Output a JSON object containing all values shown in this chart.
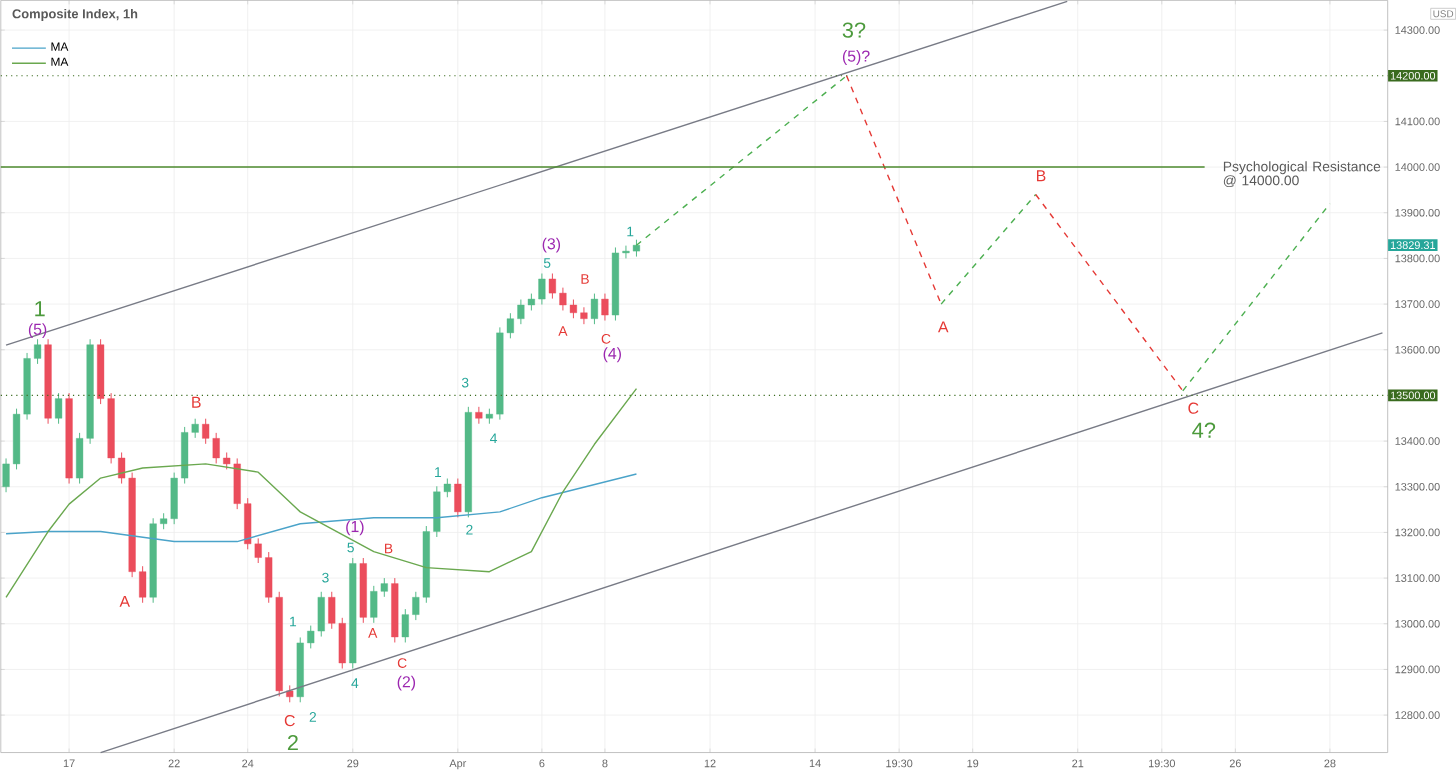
{
  "chart_data": {
    "type": "candlestick",
    "title": "Composite Index, 1h",
    "categories": [
      null,
      null,
      null,
      null,
      null,
      null,
      "17",
      null,
      null,
      null,
      null,
      null,
      null,
      null,
      null,
      null,
      "22",
      null,
      null,
      null,
      null,
      null,
      null,
      "24",
      null,
      null,
      null,
      null,
      null,
      null,
      null,
      null,
      null,
      "29",
      null,
      null,
      null,
      null,
      null,
      null,
      null,
      null,
      null,
      "Apr",
      null,
      null,
      null,
      null,
      null,
      null,
      null,
      "6",
      null,
      null,
      null,
      null,
      null,
      "8",
      null,
      null,
      null,
      null,
      null,
      null,
      null,
      null,
      null,
      "12",
      null,
      null,
      null,
      null,
      null,
      null,
      null,
      null,
      null,
      "14",
      null,
      null,
      null,
      null,
      null,
      null,
      null,
      "19:30",
      null,
      null,
      null,
      null,
      null,
      null,
      "19",
      null,
      null,
      null,
      null,
      null,
      null,
      null,
      null,
      null,
      "21",
      null,
      null,
      null,
      null,
      null,
      null,
      null,
      "19:30",
      null,
      null,
      null,
      null,
      null,
      null,
      "26",
      null,
      null,
      null,
      null,
      null,
      null,
      null,
      null,
      "28",
      null,
      null,
      null,
      null,
      null
    ],
    "ohlc": [
      [
        13300,
        13362,
        13288,
        13350
      ],
      [
        13350,
        13471,
        13338,
        13459
      ],
      [
        13459,
        13593,
        13447,
        13581
      ],
      [
        13581,
        13623,
        13569,
        13611
      ],
      [
        13611,
        13623,
        13438,
        13450
      ],
      [
        13450,
        13505,
        13438,
        13493
      ],
      [
        13493,
        13505,
        13307,
        13319
      ],
      [
        13319,
        13418,
        13307,
        13406
      ],
      [
        13406,
        13623,
        13394,
        13611
      ],
      [
        13611,
        13623,
        13481,
        13493
      ],
      [
        13493,
        13505,
        13351,
        13363
      ],
      [
        13363,
        13375,
        13307,
        13319
      ],
      [
        13319,
        13331,
        13102,
        13114
      ],
      [
        13114,
        13126,
        13046,
        13058
      ],
      [
        13058,
        13231,
        13046,
        13219
      ],
      [
        13219,
        13242,
        13207,
        13230
      ],
      [
        13230,
        13331,
        13218,
        13319
      ],
      [
        13319,
        13431,
        13307,
        13419
      ],
      [
        13419,
        13449,
        13407,
        13437
      ],
      [
        13437,
        13449,
        13394,
        13406
      ],
      [
        13406,
        13418,
        13351,
        13363
      ],
      [
        13363,
        13375,
        13338,
        13350
      ],
      [
        13350,
        13362,
        13251,
        13263
      ],
      [
        13263,
        13275,
        13163,
        13175
      ],
      [
        13175,
        13187,
        13133,
        13145
      ],
      [
        13145,
        13157,
        13046,
        13058
      ],
      [
        13058,
        13070,
        12841,
        12853
      ],
      [
        12853,
        12865,
        12828,
        12840
      ],
      [
        12840,
        12970,
        12828,
        12958
      ],
      [
        12958,
        12996,
        12946,
        12984
      ],
      [
        12984,
        13070,
        12972,
        13058
      ],
      [
        13058,
        13070,
        12989,
        13001
      ],
      [
        13001,
        13013,
        12902,
        12914
      ],
      [
        12914,
        13144,
        12902,
        13132
      ],
      [
        13132,
        13144,
        13002,
        13014
      ],
      [
        13014,
        13083,
        13002,
        13071
      ],
      [
        13071,
        13100,
        13059,
        13088
      ],
      [
        13088,
        13100,
        12959,
        12971
      ],
      [
        12971,
        13032,
        12959,
        13020
      ],
      [
        13020,
        13070,
        13008,
        13058
      ],
      [
        13058,
        13214,
        13046,
        13202
      ],
      [
        13202,
        13301,
        13190,
        13289
      ],
      [
        13289,
        13318,
        13277,
        13306
      ],
      [
        13306,
        13318,
        13233,
        13245
      ],
      [
        13245,
        13475,
        13233,
        13463
      ],
      [
        13463,
        13475,
        13438,
        13450
      ],
      [
        13450,
        13471,
        13438,
        13459
      ],
      [
        13459,
        13649,
        13447,
        13637
      ],
      [
        13637,
        13680,
        13625,
        13668
      ],
      [
        13668,
        13710,
        13656,
        13698
      ],
      [
        13698,
        13723,
        13686,
        13711
      ],
      [
        13711,
        13767,
        13699,
        13755
      ],
      [
        13755,
        13767,
        13712,
        13724
      ],
      [
        13724,
        13736,
        13686,
        13698
      ],
      [
        13698,
        13710,
        13669,
        13681
      ],
      [
        13681,
        13693,
        13656,
        13668
      ],
      [
        13668,
        13723,
        13656,
        13711
      ],
      [
        13711,
        13723,
        13664,
        13676
      ],
      [
        13676,
        13824,
        13664,
        13812
      ],
      [
        13812,
        13828,
        13800,
        13816
      ],
      [
        13816,
        13841,
        13804,
        13829
      ],
      null,
      null,
      null,
      null,
      null,
      null,
      null,
      null,
      null,
      null,
      null,
      null,
      null,
      null,
      null,
      null,
      null,
      null,
      null,
      null,
      null,
      null,
      null,
      null,
      null,
      null,
      null,
      null,
      null,
      null,
      null,
      null,
      null,
      null,
      null,
      null,
      null,
      null,
      null,
      null,
      null,
      null,
      null,
      null,
      null,
      null,
      null,
      null,
      null,
      null,
      null,
      null,
      null,
      null,
      null,
      null,
      null,
      null,
      null,
      null,
      null,
      null,
      null,
      null,
      null,
      null,
      null,
      null,
      null,
      null,
      null
    ],
    "series": [
      {
        "name": "MA",
        "type": "line",
        "color": "#4aa3c9",
        "values": [
          13197,
          null,
          null,
          null,
          13202,
          null,
          null,
          null,
          null,
          13202,
          null,
          null,
          null,
          null,
          null,
          null,
          13180,
          null,
          null,
          null,
          null,
          null,
          13180,
          null,
          null,
          null,
          null,
          null,
          13219,
          null,
          null,
          null,
          null,
          null,
          null,
          13232,
          null,
          null,
          null,
          null,
          null,
          13232,
          null,
          null,
          null,
          null,
          null,
          13245,
          null,
          null,
          null,
          13276,
          null,
          null,
          null,
          null,
          null,
          null,
          null,
          null,
          13328,
          null,
          null,
          null,
          null,
          null,
          null,
          null,
          null,
          null,
          null,
          null,
          null,
          null,
          null,
          null,
          null,
          null,
          null,
          null,
          null,
          null,
          null,
          null,
          null,
          null,
          null,
          null,
          null,
          null,
          null,
          null,
          null,
          null,
          null,
          null,
          null,
          null,
          null,
          null,
          null,
          null,
          null,
          null,
          null,
          null,
          null,
          null,
          null,
          null,
          null,
          null,
          null,
          null,
          null,
          null,
          null,
          null,
          null,
          null,
          null,
          null,
          null,
          null,
          null,
          null,
          null,
          null,
          null,
          null,
          null,
          null
        ]
      },
      {
        "name": "MA",
        "type": "line",
        "color": "#6aa84f",
        "values": [
          13058,
          null,
          null,
          null,
          13202,
          null,
          13262,
          null,
          null,
          13319,
          null,
          null,
          null,
          13341,
          null,
          null,
          null,
          null,
          null,
          13350,
          null,
          null,
          null,
          null,
          13332,
          null,
          null,
          null,
          13245,
          null,
          null,
          null,
          null,
          null,
          null,
          13158,
          null,
          null,
          null,
          null,
          13123,
          null,
          null,
          null,
          null,
          null,
          13114,
          null,
          null,
          null,
          13158,
          null,
          null,
          13289,
          null,
          null,
          13393,
          null,
          null,
          null,
          13515,
          null,
          null,
          null,
          null,
          null,
          null,
          null,
          null,
          null,
          null,
          null,
          null,
          null,
          null,
          null,
          null,
          null,
          null,
          null,
          null,
          null,
          null,
          null,
          null,
          null,
          null,
          null,
          null,
          null,
          null,
          null,
          null,
          null,
          null,
          null,
          null,
          null,
          null,
          null,
          null,
          null,
          null,
          null,
          null,
          null,
          null,
          null,
          null,
          null,
          null,
          null,
          null,
          null,
          null,
          null,
          null,
          null,
          null,
          null,
          null,
          null,
          null,
          null,
          null,
          null,
          null,
          null,
          null,
          null,
          null,
          null
        ]
      },
      {
        "type": "line",
        "color": "#787b86",
        "values": [
          13610,
          null,
          null,
          null,
          null,
          null,
          null,
          null,
          null,
          null,
          null,
          null,
          null,
          null,
          null,
          null,
          null,
          null,
          null,
          null,
          null,
          null,
          null,
          null,
          null,
          null,
          null,
          null,
          null,
          null,
          null,
          null,
          null,
          null,
          null,
          null,
          null,
          null,
          null,
          null,
          null,
          null,
          null,
          null,
          null,
          null,
          null,
          null,
          null,
          null,
          null,
          null,
          null,
          null,
          null,
          null,
          null,
          null,
          null,
          null,
          null,
          null,
          null,
          null,
          null,
          null,
          null,
          null,
          null,
          null,
          null,
          null,
          null,
          null,
          null,
          null,
          null,
          null,
          null,
          null,
          null,
          null,
          null,
          null,
          null,
          null,
          null,
          null,
          null,
          null,
          null,
          null,
          null,
          null,
          null,
          null,
          null,
          null,
          null,
          null,
          null,
          14363,
          null,
          null,
          null,
          null,
          null,
          null,
          null,
          null,
          null,
          null,
          null,
          null,
          null,
          null,
          null,
          null,
          null,
          null,
          null,
          null,
          null,
          null,
          null,
          null,
          null,
          null,
          null,
          null,
          null,
          null
        ]
      },
      {
        "type": "line",
        "color": "#787b86",
        "values": [
          null,
          null,
          null,
          null,
          null,
          null,
          null,
          null,
          null,
          12718,
          null,
          null,
          null,
          null,
          null,
          null,
          null,
          null,
          null,
          null,
          null,
          null,
          null,
          null,
          null,
          null,
          null,
          null,
          null,
          null,
          null,
          null,
          null,
          null,
          null,
          null,
          null,
          null,
          null,
          null,
          null,
          null,
          null,
          null,
          null,
          null,
          null,
          null,
          null,
          null,
          null,
          null,
          null,
          null,
          null,
          null,
          null,
          null,
          null,
          null,
          null,
          null,
          null,
          null,
          null,
          null,
          null,
          null,
          null,
          null,
          null,
          null,
          null,
          null,
          null,
          null,
          null,
          null,
          null,
          null,
          null,
          null,
          null,
          null,
          null,
          null,
          null,
          null,
          null,
          null,
          null,
          null,
          null,
          null,
          null,
          null,
          null,
          null,
          null,
          null,
          null,
          null,
          null,
          null,
          null,
          null,
          null,
          null,
          null,
          null,
          null,
          null,
          null,
          null,
          null,
          null,
          null,
          null,
          null,
          null,
          null,
          null,
          null,
          null,
          null,
          null,
          null,
          null,
          null,
          null,
          null,
          13637
        ]
      },
      {
        "type": "line",
        "color": "#4caf50",
        "line_style": "dashed",
        "values": [
          null,
          null,
          null,
          null,
          null,
          null,
          null,
          null,
          null,
          null,
          null,
          null,
          null,
          null,
          null,
          null,
          null,
          null,
          null,
          null,
          null,
          null,
          null,
          null,
          null,
          null,
          null,
          null,
          null,
          null,
          null,
          null,
          null,
          null,
          null,
          null,
          null,
          null,
          null,
          null,
          null,
          null,
          null,
          null,
          null,
          null,
          null,
          null,
          null,
          null,
          null,
          null,
          null,
          null,
          null,
          null,
          null,
          null,
          null,
          null,
          13829,
          null,
          null,
          null,
          null,
          null,
          null,
          null,
          null,
          null,
          null,
          null,
          null,
          null,
          null,
          null,
          null,
          null,
          null,
          null,
          14200,
          null,
          null,
          null,
          null,
          null,
          null,
          null,
          null,
          null,
          null,
          null,
          null,
          null,
          null,
          null,
          null,
          null,
          null,
          null,
          null,
          null,
          null,
          null,
          null,
          null,
          null,
          null,
          null,
          null,
          null,
          null,
          null,
          null,
          null,
          null,
          null,
          null,
          null,
          null,
          null,
          null,
          null,
          null,
          null,
          null,
          null,
          null,
          null,
          null,
          null,
          null
        ]
      },
      {
        "type": "line",
        "color": "#e53935",
        "line_style": "dashed",
        "values": [
          null,
          null,
          null,
          null,
          null,
          null,
          null,
          null,
          null,
          null,
          null,
          null,
          null,
          null,
          null,
          null,
          null,
          null,
          null,
          null,
          null,
          null,
          null,
          null,
          null,
          null,
          null,
          null,
          null,
          null,
          null,
          null,
          null,
          null,
          null,
          null,
          null,
          null,
          null,
          null,
          null,
          null,
          null,
          null,
          null,
          null,
          null,
          null,
          null,
          null,
          null,
          null,
          null,
          null,
          null,
          null,
          null,
          null,
          null,
          null,
          null,
          null,
          null,
          null,
          null,
          null,
          null,
          null,
          null,
          null,
          null,
          null,
          null,
          null,
          null,
          null,
          null,
          null,
          null,
          null,
          14200,
          null,
          null,
          null,
          null,
          null,
          null,
          null,
          null,
          13700,
          null,
          null,
          null,
          null,
          null,
          null,
          null,
          null,
          null,
          null,
          null,
          null,
          null,
          null,
          null,
          null,
          null,
          null,
          null,
          null,
          null,
          null,
          null,
          null,
          null,
          null,
          null,
          null,
          null,
          null,
          null,
          null,
          null,
          null,
          null,
          null,
          null,
          null,
          null,
          null,
          null,
          null
        ]
      },
      {
        "type": "line",
        "color": "#4caf50",
        "line_style": "dashed",
        "values": [
          null,
          null,
          null,
          null,
          null,
          null,
          null,
          null,
          null,
          null,
          null,
          null,
          null,
          null,
          null,
          null,
          null,
          null,
          null,
          null,
          null,
          null,
          null,
          null,
          null,
          null,
          null,
          null,
          null,
          null,
          null,
          null,
          null,
          null,
          null,
          null,
          null,
          null,
          null,
          null,
          null,
          null,
          null,
          null,
          null,
          null,
          null,
          null,
          null,
          null,
          null,
          null,
          null,
          null,
          null,
          null,
          null,
          null,
          null,
          null,
          null,
          null,
          null,
          null,
          null,
          null,
          null,
          null,
          null,
          null,
          null,
          null,
          null,
          null,
          null,
          null,
          null,
          null,
          null,
          null,
          null,
          null,
          null,
          null,
          null,
          null,
          null,
          null,
          null,
          13700,
          null,
          null,
          null,
          null,
          null,
          null,
          null,
          null,
          13940,
          null,
          null,
          null,
          null,
          null,
          null,
          null,
          null,
          null,
          null,
          null,
          null,
          null,
          null,
          null,
          null,
          null,
          null,
          null,
          null,
          null,
          null,
          null,
          null,
          null,
          null,
          null,
          null,
          null,
          null,
          null,
          null,
          null
        ]
      },
      {
        "type": "line",
        "color": "#e53935",
        "line_style": "dashed",
        "values": [
          null,
          null,
          null,
          null,
          null,
          null,
          null,
          null,
          null,
          null,
          null,
          null,
          null,
          null,
          null,
          null,
          null,
          null,
          null,
          null,
          null,
          null,
          null,
          null,
          null,
          null,
          null,
          null,
          null,
          null,
          null,
          null,
          null,
          null,
          null,
          null,
          null,
          null,
          null,
          null,
          null,
          null,
          null,
          null,
          null,
          null,
          null,
          null,
          null,
          null,
          null,
          null,
          null,
          null,
          null,
          null,
          null,
          null,
          null,
          null,
          null,
          null,
          null,
          null,
          null,
          null,
          null,
          null,
          null,
          null,
          null,
          null,
          null,
          null,
          null,
          null,
          null,
          null,
          null,
          null,
          null,
          null,
          null,
          null,
          null,
          null,
          null,
          null,
          null,
          null,
          null,
          null,
          null,
          null,
          null,
          null,
          null,
          null,
          13940,
          null,
          null,
          null,
          null,
          null,
          null,
          null,
          null,
          null,
          null,
          null,
          null,
          null,
          13510,
          null,
          null,
          null,
          null,
          null,
          null,
          null,
          null,
          null,
          null,
          null,
          null,
          null,
          null,
          null,
          null,
          null,
          null,
          null
        ]
      },
      {
        "type": "line",
        "color": "#4caf50",
        "line_style": "dashed",
        "values": [
          null,
          null,
          null,
          null,
          null,
          null,
          null,
          null,
          null,
          null,
          null,
          null,
          null,
          null,
          null,
          null,
          null,
          null,
          null,
          null,
          null,
          null,
          null,
          null,
          null,
          null,
          null,
          null,
          null,
          null,
          null,
          null,
          null,
          null,
          null,
          null,
          null,
          null,
          null,
          null,
          null,
          null,
          null,
          null,
          null,
          null,
          null,
          null,
          null,
          null,
          null,
          null,
          null,
          null,
          null,
          null,
          null,
          null,
          null,
          null,
          null,
          null,
          null,
          null,
          null,
          null,
          null,
          null,
          null,
          null,
          null,
          null,
          null,
          null,
          null,
          null,
          null,
          null,
          null,
          null,
          null,
          null,
          null,
          null,
          null,
          null,
          null,
          null,
          null,
          null,
          null,
          null,
          null,
          null,
          null,
          null,
          null,
          null,
          null,
          null,
          null,
          null,
          null,
          null,
          null,
          null,
          null,
          null,
          null,
          null,
          null,
          null,
          13510,
          null,
          null,
          null,
          null,
          null,
          null,
          null,
          null,
          null,
          null,
          null,
          null,
          null,
          13920,
          null,
          null,
          null,
          null,
          null
        ]
      }
    ],
    "ylim": [
      12718,
      14365
    ],
    "yticks": [
      {
        "value": 12800,
        "label": "12800.00"
      },
      {
        "value": 12900,
        "label": "12900.00"
      },
      {
        "value": 13000,
        "label": "13000.00"
      },
      {
        "value": 13100,
        "label": "13100.00"
      },
      {
        "value": 13200,
        "label": "13200.00"
      },
      {
        "value": 13300,
        "label": "13300.00"
      },
      {
        "value": 13400,
        "label": "13400.00"
      },
      {
        "value": 13600,
        "label": "13600.00"
      },
      {
        "value": 13700,
        "label": "13700.00"
      },
      {
        "value": 13800,
        "label": "13800.00"
      },
      {
        "value": 13900,
        "label": "13900.00"
      },
      {
        "value": 14000,
        "label": "14000.00"
      },
      {
        "value": 14100,
        "label": "14100.00"
      },
      {
        "value": 14300,
        "label": "14300.00"
      }
    ],
    "ref_lines": [
      {
        "axis": "y",
        "value": 14200,
        "label": "14200.00",
        "color": "#3a6b1f",
        "line_style": "dotted"
      },
      {
        "axis": "y",
        "value": 13500,
        "label": "13500.00",
        "color": "#3a6b1f",
        "line_style": "dotted"
      },
      {
        "axis": "y",
        "value": 14000,
        "label": "Psychological Resistance @ 14000.00",
        "color": "#4c8a2e",
        "line_style": "solid"
      }
    ],
    "grid": true,
    "legend": "top left",
    "annotations": [
      "USD",
      "13829.31",
      "1",
      "(5)",
      "B",
      "A",
      "C",
      "2",
      "1",
      "2",
      "3",
      "4",
      "5",
      "(1)",
      "B",
      "A",
      "C",
      "(2)",
      "1",
      "2",
      "3",
      "4",
      "(3)",
      "5",
      "A",
      "B",
      "C",
      "(4)",
      "1",
      "3?",
      "(5)?",
      "A",
      "B",
      "C",
      "4?"
    ]
  }
}
